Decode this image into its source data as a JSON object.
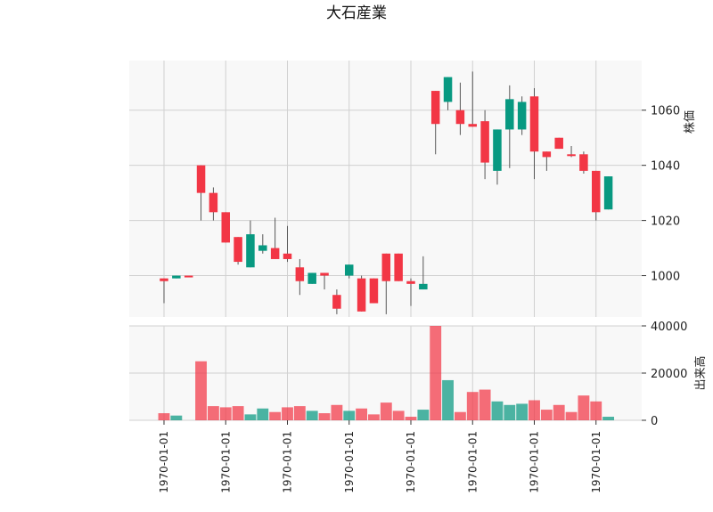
{
  "chart_data": {
    "type": "candlestick",
    "title": "大石産業",
    "price_axis": {
      "label": "株価",
      "range": [
        985,
        1078
      ],
      "ticks": [
        1000,
        1020,
        1040,
        1060
      ]
    },
    "volume_axis": {
      "label": "出来高",
      "range": [
        0,
        40000
      ],
      "ticks": [
        0,
        20000,
        40000
      ]
    },
    "x_tick_labels": [
      "1970-01-01",
      "1970-01-01",
      "1970-01-01",
      "1970-01-01",
      "1970-01-01",
      "1970-01-01",
      "1970-01-01",
      "1970-01-01"
    ],
    "grid": true,
    "colors": {
      "up": "#f23645",
      "down": "#089981",
      "wick": "#555555",
      "panel": "#f8f8f8"
    },
    "candles": [
      {
        "open": 998,
        "high": 999,
        "low": 990,
        "close": 999,
        "volume": 3000
      },
      {
        "open": 1000,
        "high": 1000,
        "low": 999,
        "close": 999,
        "volume": 2000
      },
      {
        "open": 1000,
        "high": 1000,
        "low": 1000,
        "close": 1000,
        "volume": 0
      },
      {
        "open": 1030,
        "high": 1040,
        "low": 1020,
        "close": 1040,
        "volume": 25000
      },
      {
        "open": 1023,
        "high": 1032,
        "low": 1020,
        "close": 1030,
        "volume": 6000
      },
      {
        "open": 1012,
        "high": 1023,
        "low": 1012,
        "close": 1023,
        "volume": 5500
      },
      {
        "open": 1005,
        "high": 1014,
        "low": 1004,
        "close": 1014,
        "volume": 6000
      },
      {
        "open": 1015,
        "high": 1020,
        "low": 1003,
        "close": 1003,
        "volume": 2500
      },
      {
        "open": 1011,
        "high": 1015,
        "low": 1008,
        "close": 1009,
        "volume": 5000
      },
      {
        "open": 1006,
        "high": 1021,
        "low": 1006,
        "close": 1010,
        "volume": 3500
      },
      {
        "open": 1006,
        "high": 1018,
        "low": 1005,
        "close": 1008,
        "volume": 5500
      },
      {
        "open": 998,
        "high": 1006,
        "low": 993,
        "close": 1003,
        "volume": 6000
      },
      {
        "open": 1001,
        "high": 1001,
        "low": 997,
        "close": 997,
        "volume": 4000
      },
      {
        "open": 1000,
        "high": 1001,
        "low": 995,
        "close": 1001,
        "volume": 3000
      },
      {
        "open": 988,
        "high": 995,
        "low": 986,
        "close": 993,
        "volume": 6500
      },
      {
        "open": 1004,
        "high": 1004,
        "low": 999,
        "close": 1000,
        "volume": 4000
      },
      {
        "open": 987,
        "high": 1000,
        "low": 987,
        "close": 999,
        "volume": 5000
      },
      {
        "open": 990,
        "high": 999,
        "low": 990,
        "close": 999,
        "volume": 2500
      },
      {
        "open": 998,
        "high": 1008,
        "low": 986,
        "close": 1008,
        "volume": 7500
      },
      {
        "open": 998,
        "high": 1008,
        "low": 998,
        "close": 1008,
        "volume": 4000
      },
      {
        "open": 997,
        "high": 999,
        "low": 989,
        "close": 998,
        "volume": 1500
      },
      {
        "open": 997,
        "high": 1007,
        "low": 995,
        "close": 995,
        "volume": 4500
      },
      {
        "open": 1055,
        "high": 1067,
        "low": 1044,
        "close": 1067,
        "volume": 40000
      },
      {
        "open": 1072,
        "high": 1072,
        "low": 1060,
        "close": 1063,
        "volume": 17000
      },
      {
        "open": 1055,
        "high": 1070,
        "low": 1051,
        "close": 1060,
        "volume": 3500
      },
      {
        "open": 1054,
        "high": 1074,
        "low": 1054,
        "close": 1055,
        "volume": 12000
      },
      {
        "open": 1041,
        "high": 1060,
        "low": 1035,
        "close": 1056,
        "volume": 13000
      },
      {
        "open": 1053,
        "high": 1053,
        "low": 1033,
        "close": 1038,
        "volume": 8000
      },
      {
        "open": 1064,
        "high": 1069,
        "low": 1039,
        "close": 1053,
        "volume": 6500
      },
      {
        "open": 1063,
        "high": 1065,
        "low": 1051,
        "close": 1053,
        "volume": 7000
      },
      {
        "open": 1045,
        "high": 1068,
        "low": 1035,
        "close": 1065,
        "volume": 8500
      },
      {
        "open": 1043,
        "high": 1045,
        "low": 1038,
        "close": 1045,
        "volume": 4500
      },
      {
        "open": 1046,
        "high": 1050,
        "low": 1046,
        "close": 1050,
        "volume": 6500
      },
      {
        "open": 1044,
        "high": 1047,
        "low": 1043,
        "close": 1044,
        "volume": 3500
      },
      {
        "open": 1038,
        "high": 1045,
        "low": 1037,
        "close": 1044,
        "volume": 10500
      },
      {
        "open": 1023,
        "high": 1038,
        "low": 1020,
        "close": 1038,
        "volume": 8000
      },
      {
        "open": 1036,
        "high": 1036,
        "low": 1024,
        "close": 1024,
        "volume": 1500
      }
    ]
  }
}
